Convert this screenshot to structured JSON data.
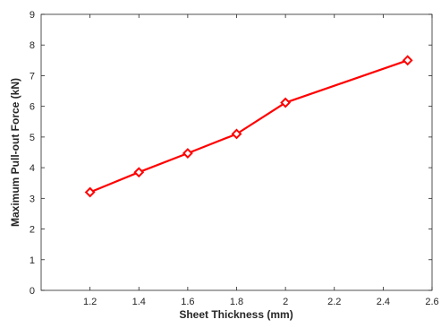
{
  "chart_data": {
    "type": "line",
    "title": "",
    "xlabel": "Sheet Thickness (mm)",
    "ylabel": "Maximum Pull-out Force (kN)",
    "xlim": [
      1,
      2.6
    ],
    "ylim": [
      0,
      9
    ],
    "xticks": [
      1.2,
      1.4,
      1.6,
      1.8,
      2,
      2.2,
      2.4,
      2.6
    ],
    "yticks": [
      0,
      1,
      2,
      3,
      4,
      5,
      6,
      7,
      8,
      9
    ],
    "xtick_labels": [
      "1.2",
      "1.4",
      "1.6",
      "1.8",
      "2",
      "2.2",
      "2.4",
      "2.6"
    ],
    "ytick_labels": [
      "0",
      "1",
      "2",
      "3",
      "4",
      "5",
      "6",
      "7",
      "8",
      "9"
    ],
    "grid": false,
    "legend": "none",
    "series": [
      {
        "color": "#ff0000",
        "marker": "diamond",
        "x": [
          1.2,
          1.4,
          1.6,
          1.8,
          2.0,
          2.5
        ],
        "y": [
          3.2,
          3.85,
          4.47,
          5.1,
          6.12,
          7.5
        ]
      }
    ]
  }
}
